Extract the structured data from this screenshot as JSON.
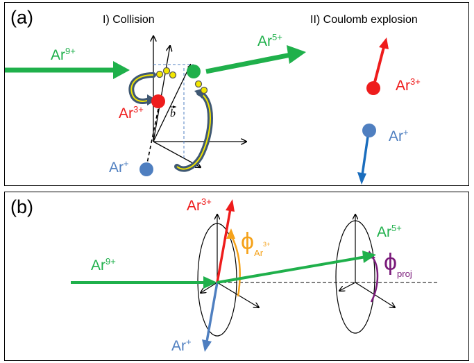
{
  "panel_a": {
    "label": "(a)",
    "stage1_title": "I) Collision",
    "stage2_title": "II) Coulomb explosion",
    "projectile_in": {
      "base": "Ar",
      "charge": "9+"
    },
    "projectile_out": {
      "base": "Ar",
      "charge": "5+"
    },
    "recoil_ar3": {
      "base": "Ar",
      "charge": "3+"
    },
    "recoil_ar1": {
      "base": "Ar",
      "charge": "+"
    },
    "impact_parameter": "b",
    "explosion_ar3": {
      "base": "Ar",
      "charge": "3+"
    },
    "explosion_ar1": {
      "base": "Ar",
      "charge": "+"
    }
  },
  "panel_b": {
    "label": "(b)",
    "projectile_in": {
      "base": "Ar",
      "charge": "9+"
    },
    "fragment_ar3": {
      "base": "Ar",
      "charge": "3+"
    },
    "fragment_ar1": {
      "base": "Ar",
      "charge": "+"
    },
    "projectile_out": {
      "base": "Ar",
      "charge": "5+"
    },
    "phi_symbol": "ϕ",
    "phi_recoil_sub": "Ar",
    "phi_recoil_sup": "3+",
    "phi_proj_sub": "proj"
  },
  "colors": {
    "green": "#1fb04b",
    "red": "#ee1c1c",
    "blue": "#4f7fc0",
    "dark_blue": "#1a6dbd",
    "orange": "#f5a21a",
    "purple": "#7a1a7a",
    "yellow": "#f2e600",
    "swoop": "#3f5873"
  }
}
